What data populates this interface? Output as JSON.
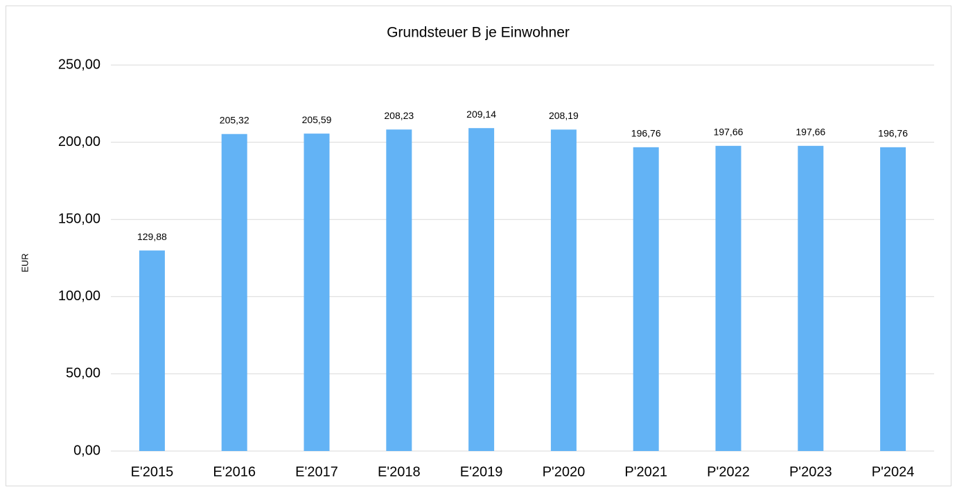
{
  "chart_data": {
    "type": "bar",
    "title": "Grundsteuer B je Einwohner",
    "y_label": "EUR",
    "categories": [
      "E'2015",
      "E'2016",
      "E'2017",
      "E'2018",
      "E'2019",
      "P'2020",
      "P'2021",
      "P'2022",
      "P'2023",
      "P'2024"
    ],
    "values": [
      129.88,
      205.32,
      205.59,
      208.23,
      209.14,
      208.19,
      196.76,
      197.66,
      197.66,
      196.76
    ],
    "value_labels": [
      "129,88",
      "205,32",
      "205,59",
      "208,23",
      "209,14",
      "208,19",
      "196,76",
      "197,66",
      "197,66",
      "196,76"
    ],
    "color": "#63b3f5",
    "ylim": [
      0,
      250
    ],
    "yticks": [
      {
        "value": 0,
        "label": "0,00"
      },
      {
        "value": 50,
        "label": "50,00"
      },
      {
        "value": 100,
        "label": "100,00"
      },
      {
        "value": 150,
        "label": "150,00"
      },
      {
        "value": 200,
        "label": "200,00"
      },
      {
        "value": 250,
        "label": "250,00"
      }
    ],
    "grid": true
  }
}
